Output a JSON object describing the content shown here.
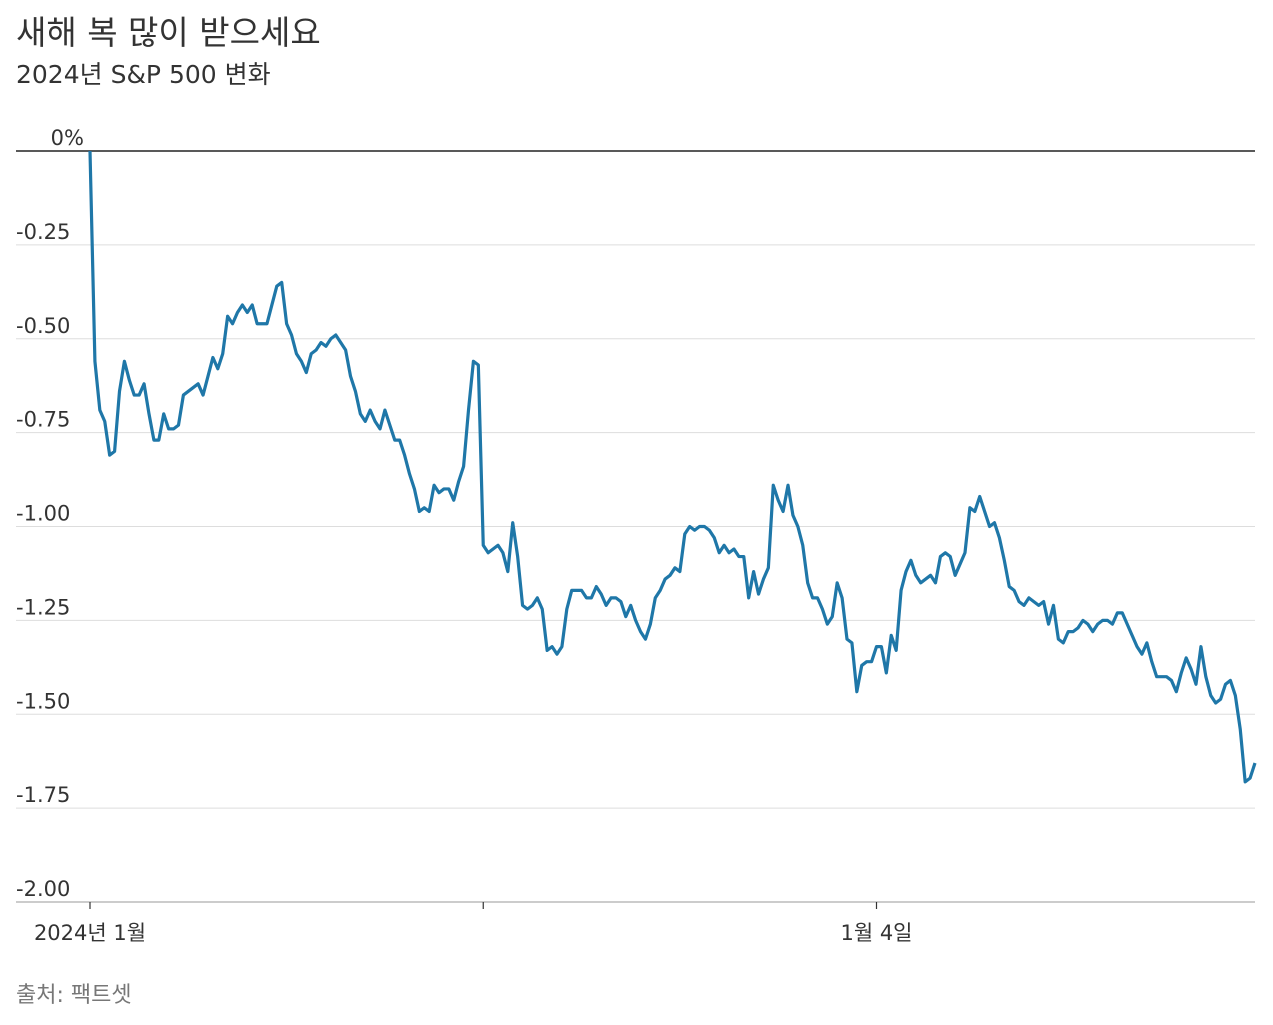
{
  "chart_data": {
    "type": "line",
    "title": "새해 복 많이 받으세요",
    "subtitle": "2024년 S&P 500 변화",
    "source": "출처: 팩트셋",
    "xlim": [
      0,
      237
    ],
    "xticks": [
      {
        "value": 0,
        "label": "2024년 1월"
      },
      {
        "value": 80,
        "label": null
      },
      {
        "value": 160,
        "label": "1월 4일"
      }
    ],
    "ylim": [
      -2,
      0
    ],
    "yticks": [
      {
        "value": 0,
        "label": "0%"
      },
      -0.25,
      {
        "value": -0.5,
        "label": "-0.50"
      },
      -0.75,
      {
        "value": -1,
        "label": "-1.00"
      },
      -1.25,
      {
        "value": -1.5,
        "label": "-1.50"
      },
      -1.75,
      {
        "value": -2,
        "label": "-2.00"
      }
    ],
    "grid": true,
    "series": [
      {
        "name": "S&P 500",
        "color": "#1f77a8",
        "values": [
          0,
          -0.56,
          -0.69,
          -0.72,
          -0.81,
          -0.8,
          -0.64,
          -0.56,
          -0.61,
          -0.65,
          -0.65,
          -0.62,
          -0.7,
          -0.77,
          -0.77,
          -0.7,
          -0.74,
          -0.74,
          -0.73,
          -0.65,
          -0.64,
          -0.63,
          -0.62,
          -0.65,
          -0.6,
          -0.55,
          -0.58,
          -0.54,
          -0.44,
          -0.46,
          -0.43,
          -0.41,
          -0.43,
          -0.41,
          -0.46,
          -0.46,
          -0.46,
          -0.41,
          -0.36,
          -0.35,
          -0.46,
          -0.49,
          -0.54,
          -0.56,
          -0.59,
          -0.54,
          -0.53,
          -0.51,
          -0.52,
          -0.5,
          -0.49,
          -0.51,
          -0.53,
          -0.6,
          -0.64,
          -0.7,
          -0.72,
          -0.69,
          -0.72,
          -0.74,
          -0.69,
          -0.73,
          -0.77,
          -0.77,
          -0.81,
          -0.86,
          -0.9,
          -0.96,
          -0.95,
          -0.96,
          -0.89,
          -0.91,
          -0.9,
          -0.9,
          -0.93,
          -0.88,
          -0.84,
          -0.69,
          -0.56,
          -0.57,
          -1.05,
          -1.07,
          -1.06,
          -1.05,
          -1.07,
          -1.12,
          -0.99,
          -1.08,
          -1.21,
          -1.22,
          -1.21,
          -1.19,
          -1.22,
          -1.33,
          -1.32,
          -1.34,
          -1.32,
          -1.22,
          -1.17,
          -1.17,
          -1.17,
          -1.19,
          -1.19,
          -1.16,
          -1.18,
          -1.21,
          -1.19,
          -1.19,
          -1.2,
          -1.24,
          -1.21,
          -1.25,
          -1.28,
          -1.3,
          -1.26,
          -1.19,
          -1.17,
          -1.14,
          -1.13,
          -1.11,
          -1.12,
          -1.02,
          -1.0,
          -1.01,
          -1.0,
          -1.0,
          -1.01,
          -1.03,
          -1.07,
          -1.05,
          -1.07,
          -1.06,
          -1.08,
          -1.08,
          -1.19,
          -1.12,
          -1.18,
          -1.14,
          -1.11,
          -0.89,
          -0.93,
          -0.96,
          -0.89,
          -0.97,
          -1.0,
          -1.05,
          -1.15,
          -1.19,
          -1.19,
          -1.22,
          -1.26,
          -1.24,
          -1.15,
          -1.19,
          -1.3,
          -1.31,
          -1.44,
          -1.37,
          -1.36,
          -1.36,
          -1.32,
          -1.32,
          -1.39,
          -1.29,
          -1.33,
          -1.17,
          -1.12,
          -1.09,
          -1.13,
          -1.15,
          -1.14,
          -1.13,
          -1.15,
          -1.08,
          -1.07,
          -1.08,
          -1.13,
          -1.1,
          -1.07,
          -0.95,
          -0.96,
          -0.92,
          -0.96,
          -1.0,
          -0.99,
          -1.03,
          -1.09,
          -1.16,
          -1.17,
          -1.2,
          -1.21,
          -1.19,
          -1.2,
          -1.21,
          -1.2,
          -1.26,
          -1.21,
          -1.3,
          -1.31,
          -1.28,
          -1.28,
          -1.27,
          -1.25,
          -1.26,
          -1.28,
          -1.26,
          -1.25,
          -1.25,
          -1.26,
          -1.23,
          -1.23,
          -1.26,
          -1.29,
          -1.32,
          -1.34,
          -1.31,
          -1.36,
          -1.4,
          -1.4,
          -1.4,
          -1.41,
          -1.44,
          -1.39,
          -1.35,
          -1.38,
          -1.42,
          -1.32,
          -1.4,
          -1.45,
          -1.47,
          -1.46,
          -1.42,
          -1.41,
          -1.45,
          -1.54,
          -1.68,
          -1.67,
          -1.63
        ]
      }
    ]
  }
}
